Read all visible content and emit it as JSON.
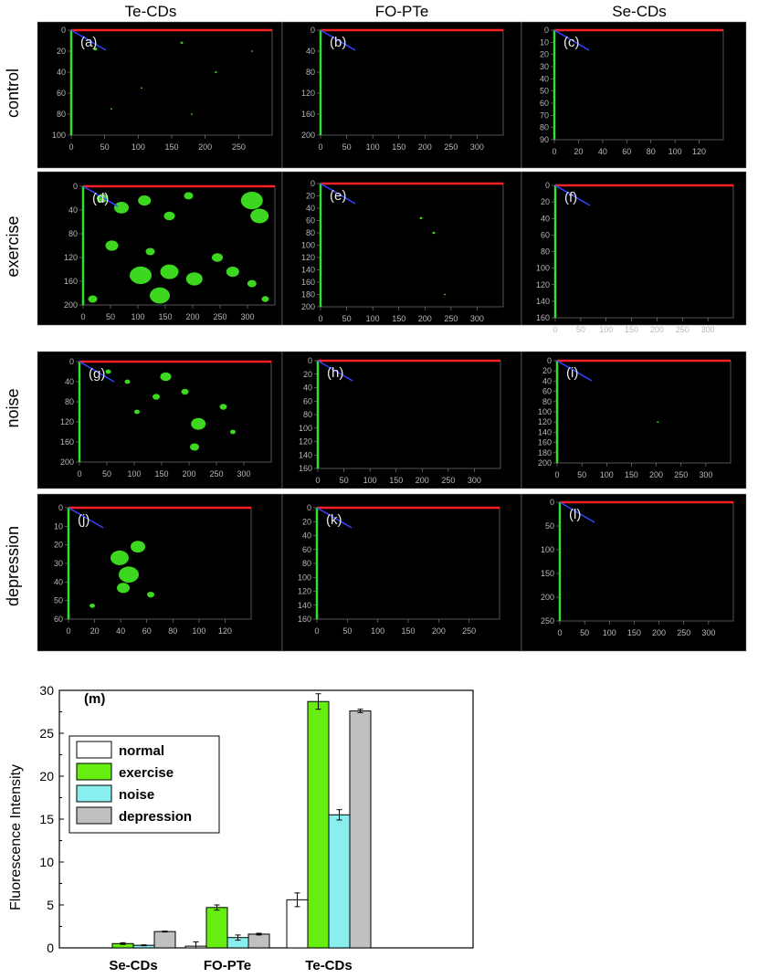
{
  "columns": [
    "Te-CDs",
    "FO-PTe",
    "Se-CDs"
  ],
  "rows": [
    "control",
    "exercise",
    "noise",
    "depression"
  ],
  "panels": [
    {
      "label": "(a)",
      "xticks": [
        "0",
        "50",
        "100",
        "150",
        "200",
        "250"
      ],
      "yticks": [
        "0",
        "20",
        "40",
        "60",
        "80",
        "100"
      ]
    },
    {
      "label": "(b)",
      "xticks": [
        "0",
        "50",
        "100",
        "150",
        "200",
        "250",
        "300"
      ],
      "yticks": [
        "0",
        "40",
        "80",
        "120",
        "160",
        "200"
      ]
    },
    {
      "label": "(c)",
      "xticks": [
        "0",
        "20",
        "40",
        "60",
        "80",
        "100",
        "120"
      ],
      "yticks": [
        "0",
        "10",
        "20",
        "30",
        "40",
        "50",
        "60",
        "70",
        "80",
        "90"
      ]
    },
    {
      "label": "(d)",
      "xticks": [
        "0",
        "50",
        "100",
        "150",
        "200",
        "250",
        "300"
      ],
      "yticks": [
        "0",
        "40",
        "80",
        "120",
        "160",
        "200"
      ]
    },
    {
      "label": "(e)",
      "xticks": [
        "0",
        "50",
        "100",
        "150",
        "200",
        "250",
        "300"
      ],
      "yticks": [
        "0",
        "20",
        "40",
        "60",
        "80",
        "100",
        "120",
        "140",
        "160",
        "180",
        "200"
      ]
    },
    {
      "label": "(f)",
      "xticks": [
        "0",
        "50",
        "100",
        "150",
        "200",
        "250",
        "300"
      ],
      "yticks": [
        "0",
        "20",
        "40",
        "60",
        "80",
        "100",
        "120",
        "140",
        "160"
      ]
    },
    {
      "label": "(g)",
      "xticks": [
        "0",
        "50",
        "100",
        "150",
        "200",
        "250",
        "300"
      ],
      "yticks": [
        "0",
        "40",
        "80",
        "120",
        "160",
        "200"
      ]
    },
    {
      "label": "(h)",
      "xticks": [
        "0",
        "50",
        "100",
        "150",
        "200",
        "250",
        "300"
      ],
      "yticks": [
        "0",
        "20",
        "40",
        "60",
        "80",
        "100",
        "120",
        "140",
        "160"
      ]
    },
    {
      "label": "(i)",
      "xticks": [
        "0",
        "50",
        "100",
        "150",
        "200",
        "250",
        "300"
      ],
      "yticks": [
        "0",
        "20",
        "40",
        "60",
        "80",
        "100",
        "120",
        "140",
        "160",
        "180",
        "200"
      ]
    },
    {
      "label": "(j)",
      "xticks": [
        "0",
        "20",
        "40",
        "60",
        "80",
        "100",
        "120"
      ],
      "yticks": [
        "0",
        "10",
        "20",
        "30",
        "40",
        "50",
        "60"
      ]
    },
    {
      "label": "(k)",
      "xticks": [
        "0",
        "50",
        "100",
        "150",
        "200",
        "250"
      ],
      "yticks": [
        "0",
        "20",
        "40",
        "60",
        "80",
        "100",
        "120",
        "140",
        "160"
      ]
    },
    {
      "label": "(l)",
      "xticks": [
        "0",
        "50",
        "100",
        "150",
        "200",
        "250",
        "300"
      ],
      "yticks": [
        "0",
        "50",
        "100",
        "150",
        "200",
        "250"
      ]
    }
  ],
  "chart_data": {
    "type": "bar",
    "panel_label": "(m)",
    "categories": [
      "Se-CDs",
      "FO-PTe",
      "Te-CDs"
    ],
    "series": [
      {
        "name": "normal",
        "values": [
          0.0,
          0.2,
          5.6
        ],
        "errors": [
          0.0,
          0.5,
          0.8
        ],
        "color": "#ffffff"
      },
      {
        "name": "exercise",
        "values": [
          0.5,
          4.7,
          28.7
        ],
        "errors": [
          0.1,
          0.3,
          0.9
        ],
        "color": "#66ee11"
      },
      {
        "name": "noise",
        "values": [
          0.3,
          1.2,
          15.5
        ],
        "errors": [
          0.05,
          0.3,
          0.6
        ],
        "color": "#88eeee"
      },
      {
        "name": "depression",
        "values": [
          1.9,
          1.6,
          27.6
        ],
        "errors": [
          0.05,
          0.1,
          0.2
        ],
        "color": "#c0c0c0"
      }
    ],
    "xlabel": "",
    "ylabel": "Fluorescence Intensity",
    "ylim": [
      0,
      30
    ],
    "yticks": [
      "0",
      "5",
      "10",
      "15",
      "20",
      "25",
      "30"
    ],
    "legend": "upper-left"
  },
  "colors": {
    "x_axis": "#ff2222",
    "y_axis": "#33dd33",
    "z_axis": "#3344ff",
    "fluorescence": "#44ee22",
    "panel_bg": "#000000"
  }
}
